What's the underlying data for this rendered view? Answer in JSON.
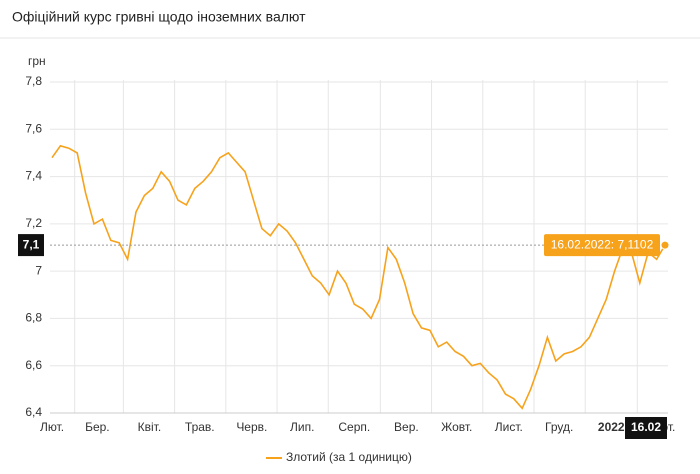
{
  "chart_data": {
    "type": "line",
    "title": "Офіційний курс гривні щодо іноземних валют",
    "ylabel": "грн",
    "xlim": [
      0,
      73
    ],
    "xticks": [
      {
        "value": 0,
        "label": "Лют."
      },
      {
        "value": 5.4,
        "label": "Бер."
      },
      {
        "value": 11.6,
        "label": "Квіт."
      },
      {
        "value": 17.6,
        "label": "Трав."
      },
      {
        "value": 23.8,
        "label": "Черв."
      },
      {
        "value": 29.8,
        "label": "Лип."
      },
      {
        "value": 36,
        "label": "Серп."
      },
      {
        "value": 42.2,
        "label": "Вер."
      },
      {
        "value": 48.2,
        "label": "Жовт."
      },
      {
        "value": 54.4,
        "label": "Лист."
      },
      {
        "value": 60.4,
        "label": "Груд."
      },
      {
        "value": 66.6,
        "label": "2022"
      },
      {
        "value": 72.8,
        "label": "Лют."
      }
    ],
    "ylim": [
      6.4,
      7.8
    ],
    "yticks": [
      {
        "value": 6.4,
        "label": "6,4"
      },
      {
        "value": 6.6,
        "label": "6,6"
      },
      {
        "value": 6.8,
        "label": "6,8"
      },
      7,
      {
        "value": 7.2,
        "label": "7,2"
      },
      {
        "value": 7.4,
        "label": "7,4"
      },
      {
        "value": 7.6,
        "label": "7,6"
      },
      {
        "value": 7.8,
        "label": "7,8"
      }
    ],
    "grid": true,
    "series": [
      {
        "name": "Злотий (за 1 одиницю)",
        "color": "#f7a21b",
        "values": [
          7.48,
          7.53,
          7.52,
          7.5,
          7.33,
          7.2,
          7.22,
          7.13,
          7.12,
          7.05,
          7.25,
          7.32,
          7.35,
          7.42,
          7.38,
          7.3,
          7.28,
          7.35,
          7.38,
          7.42,
          7.48,
          7.5,
          7.46,
          7.42,
          7.3,
          7.18,
          7.15,
          7.2,
          7.17,
          7.12,
          7.05,
          6.98,
          6.95,
          6.9,
          7.0,
          6.95,
          6.86,
          6.84,
          6.8,
          6.88,
          7.1,
          7.05,
          6.95,
          6.82,
          6.76,
          6.75,
          6.68,
          6.7,
          6.66,
          6.64,
          6.6,
          6.61,
          6.57,
          6.54,
          6.48,
          6.46,
          6.42,
          6.5,
          6.6,
          6.72,
          6.62,
          6.65,
          6.66,
          6.68,
          6.72,
          6.8,
          6.88,
          7.0,
          7.1,
          7.08,
          6.95,
          7.08,
          7.05,
          7.1102
        ]
      }
    ],
    "tooltip": "16.02.2022: 7,1102",
    "crosshair": {
      "y_label": "7,1",
      "x_label": "16.02"
    }
  }
}
